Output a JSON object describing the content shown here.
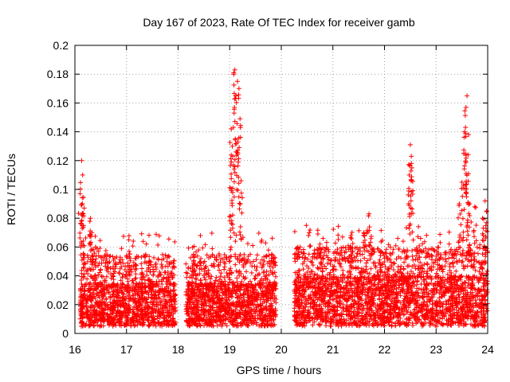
{
  "chart_data": {
    "type": "scatter",
    "title": "Day 167 of 2023, Rate Of TEC Index for receiver gamb",
    "xlabel": "GPS time / hours",
    "ylabel": "ROTI / TECUs",
    "xlim": [
      16,
      24
    ],
    "ylim": [
      0,
      0.2
    ],
    "x_ticks": [
      16,
      17,
      18,
      19,
      20,
      21,
      22,
      23,
      24
    ],
    "y_ticks": [
      0,
      0.02,
      0.04,
      0.06,
      0.08,
      0.1,
      0.12,
      0.14,
      0.16,
      0.18,
      0.2
    ],
    "x_tick_labels": [
      "16",
      "17",
      "18",
      "19",
      "20",
      "21",
      "22",
      "23",
      "24"
    ],
    "y_tick_labels": [
      "0",
      "0.02",
      "0.04",
      "0.06",
      "0.08",
      "0.1",
      "0.12",
      "0.14",
      "0.16",
      "0.18",
      "0.2"
    ],
    "grid": true,
    "marker": "+",
    "marker_color": "#ff0000",
    "series": [
      {
        "name": "ROTI",
        "segments": [
          {
            "x_start": 16.1,
            "x_end": 17.95,
            "baseline_low": 0.005,
            "baseline_high": 0.035
          },
          {
            "x_start": 18.15,
            "x_end": 19.9,
            "baseline_low": 0.005,
            "baseline_high": 0.035
          },
          {
            "x_start": 20.25,
            "x_end": 24.0,
            "baseline_low": 0.005,
            "baseline_high": 0.04
          }
        ],
        "peaks": [
          {
            "x": 16.1,
            "y": 0.097
          },
          {
            "x": 16.13,
            "y": 0.12
          },
          {
            "x": 16.15,
            "y": 0.11
          },
          {
            "x": 16.18,
            "y": 0.087
          },
          {
            "x": 16.3,
            "y": 0.08
          },
          {
            "x": 16.33,
            "y": 0.07
          },
          {
            "x": 16.4,
            "y": 0.06
          },
          {
            "x": 17.05,
            "y": 0.057
          },
          {
            "x": 17.45,
            "y": 0.05
          },
          {
            "x": 18.3,
            "y": 0.055
          },
          {
            "x": 19.0,
            "y": 0.081
          },
          {
            "x": 19.05,
            "y": 0.13
          },
          {
            "x": 19.08,
            "y": 0.18
          },
          {
            "x": 19.1,
            "y": 0.183
          },
          {
            "x": 19.12,
            "y": 0.165
          },
          {
            "x": 19.15,
            "y": 0.175
          },
          {
            "x": 19.18,
            "y": 0.17
          },
          {
            "x": 19.2,
            "y": 0.149
          },
          {
            "x": 19.22,
            "y": 0.106
          },
          {
            "x": 19.03,
            "y": 0.142
          },
          {
            "x": 19.06,
            "y": 0.123
          },
          {
            "x": 19.85,
            "y": 0.05
          },
          {
            "x": 20.75,
            "y": 0.062
          },
          {
            "x": 21.35,
            "y": 0.068
          },
          {
            "x": 21.6,
            "y": 0.07
          },
          {
            "x": 21.7,
            "y": 0.083
          },
          {
            "x": 22.48,
            "y": 0.11
          },
          {
            "x": 22.5,
            "y": 0.131
          },
          {
            "x": 22.52,
            "y": 0.123
          },
          {
            "x": 22.53,
            "y": 0.115
          },
          {
            "x": 22.7,
            "y": 0.066
          },
          {
            "x": 23.45,
            "y": 0.09
          },
          {
            "x": 23.5,
            "y": 0.105
          },
          {
            "x": 23.55,
            "y": 0.14
          },
          {
            "x": 23.58,
            "y": 0.157
          },
          {
            "x": 23.6,
            "y": 0.165
          },
          {
            "x": 23.62,
            "y": 0.124
          },
          {
            "x": 23.57,
            "y": 0.143
          },
          {
            "x": 23.65,
            "y": 0.09
          },
          {
            "x": 23.75,
            "y": 0.088
          },
          {
            "x": 23.9,
            "y": 0.08
          },
          {
            "x": 23.95,
            "y": 0.092
          },
          {
            "x": 23.98,
            "y": 0.085
          }
        ]
      }
    ]
  }
}
